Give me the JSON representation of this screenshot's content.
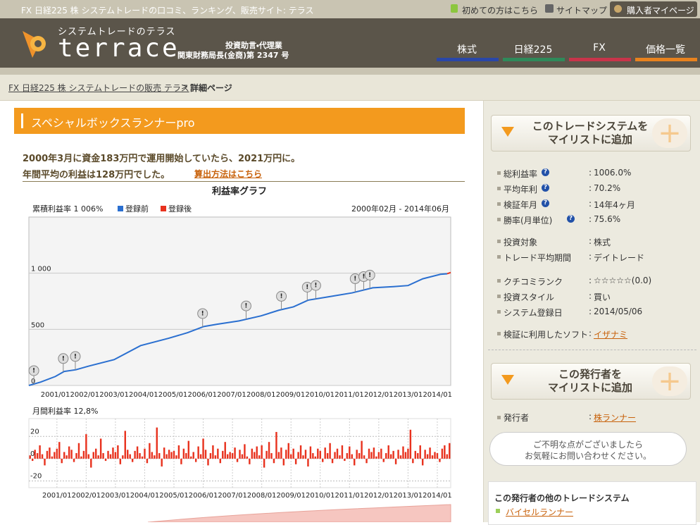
{
  "header": {
    "tagline": "FX 日経225 株 システムトレードの口コミ、ランキング、販売サイト: テラス",
    "links": [
      "初めての方はこちら",
      "サイトマップ"
    ],
    "mypage": "購入者マイページ",
    "logo_sub": "システムトレードのテラス",
    "logo": "terrace",
    "license": [
      "投資助言・代理業",
      "関東財務局長(金商)第 2347 号"
    ]
  },
  "nav": [
    {
      "label": "株式",
      "color": "#2a47a8"
    },
    {
      "label": "日経225",
      "color": "#2f8a5a"
    },
    {
      "label": "FX",
      "color": "#c8344a"
    },
    {
      "label": "価格一覧",
      "color": "#e8821e"
    }
  ],
  "breadcrumb": {
    "link": "FX 日経225 株 システムトレードの販売 テラス",
    "sep": ">",
    "current": "詳細ページ"
  },
  "main": {
    "title": "スペシャルボックスランナーpro",
    "summary": [
      "2000年3月に資金183万円で運用開始していたら、2021万円に。",
      "年間平均の利益は128万円でした。"
    ],
    "summary_link": "算出方法はこちら"
  },
  "chart_data": [
    {
      "type": "line",
      "title": "利益率グラフ",
      "summary": "累積利益率 1 006%",
      "period": "2000年02月 - 2014年06月",
      "series": [
        {
          "name": "登録前",
          "color": "#2a6fd0",
          "x": [
            2000.1,
            2000.5,
            2001.0,
            2001.3,
            2001.7,
            2002.1,
            2003.0,
            2003.9,
            2004.85,
            2005.5,
            2006.05,
            2006.5,
            2007.25,
            2008.0,
            2008.6,
            2009.1,
            2009.6,
            2010.3,
            2011.1,
            2011.8,
            2012.5,
            2013.0,
            2013.5,
            2014.1,
            2014.33
          ],
          "values": [
            0,
            30,
            80,
            125,
            140,
            170,
            230,
            355,
            420,
            470,
            525,
            545,
            575,
            620,
            670,
            700,
            760,
            790,
            825,
            870,
            880,
            890,
            950,
            990,
            995
          ]
        },
        {
          "name": "登録後",
          "color": "#e8321e",
          "x": [
            2014.33,
            2014.45
          ],
          "values": [
            995,
            1006
          ]
        }
      ],
      "flags": {
        "label": "!",
        "x": [
          2000.27,
          2001.27,
          2001.68,
          2006.01,
          2007.49,
          2008.69,
          2009.57,
          2009.86,
          2011.2,
          2011.49,
          2011.7
        ]
      },
      "xlim": [
        2000.1,
        2014.45
      ],
      "xticks": [
        {
          "value": 2001,
          "label": "2001/01"
        },
        {
          "value": 2002,
          "label": "2002/01"
        },
        {
          "value": 2003,
          "label": "2003/01"
        },
        {
          "value": 2004,
          "label": "2004/01"
        },
        {
          "value": 2005,
          "label": "2005/01"
        },
        {
          "value": 2006,
          "label": "2006/01"
        },
        {
          "value": 2007,
          "label": "2007/01"
        },
        {
          "value": 2008,
          "label": "2008/01"
        },
        {
          "value": 2009,
          "label": "2009/01"
        },
        {
          "value": 2010,
          "label": "2010/01"
        },
        {
          "value": 2011,
          "label": "2011/01"
        },
        {
          "value": 2012,
          "label": "2012/01"
        },
        {
          "value": 2013,
          "label": "2013/01"
        },
        {
          "value": 2014,
          "label": "2014/01"
        }
      ],
      "ylim": [
        0,
        1500
      ],
      "yticks": [
        0,
        500,
        {
          "value": 1000,
          "label": "1 000"
        }
      ],
      "grid": true
    },
    {
      "type": "bar",
      "summary": "月間利益率 12,8%",
      "color": "#e8321e",
      "categories": [
        null,
        null,
        null,
        null,
        null,
        null,
        null,
        null,
        null,
        null,
        null,
        "2001/01",
        null,
        null,
        null,
        null,
        null,
        null,
        null,
        null,
        null,
        null,
        null,
        "2002/01",
        null,
        null,
        null,
        null,
        null,
        null,
        null,
        null,
        null,
        null,
        null,
        "2003/01",
        null,
        null,
        null,
        null,
        null,
        null,
        null,
        null,
        null,
        null,
        null,
        "2004/01",
        null,
        null,
        null,
        null,
        null,
        null,
        null,
        null,
        null,
        null,
        null,
        "2005/01",
        null,
        null,
        null,
        null,
        null,
        null,
        null,
        null,
        null,
        null,
        null,
        "2006/01",
        null,
        null,
        null,
        null,
        null,
        null,
        null,
        null,
        null,
        null,
        null,
        "2007/01",
        null,
        null,
        null,
        null,
        null,
        null,
        null,
        null,
        null,
        null,
        null,
        "2008/01",
        null,
        null,
        null,
        null,
        null,
        null,
        null,
        null,
        null,
        null,
        null,
        "2009/01",
        null,
        null,
        null,
        null,
        null,
        null,
        null,
        null,
        null,
        null,
        null,
        "2010/01",
        null,
        null,
        null,
        null,
        null,
        null,
        null,
        null,
        null,
        null,
        null,
        "2011/01",
        null,
        null,
        null,
        null,
        null,
        null,
        null,
        null,
        null,
        null,
        null,
        "2012/01",
        null,
        null,
        null,
        null,
        null,
        null,
        null,
        null,
        null,
        null,
        null,
        "2013/01",
        null,
        null,
        null,
        null,
        null,
        null,
        null,
        null,
        null,
        null,
        null,
        "2014/01",
        null,
        null,
        null,
        null,
        null
      ],
      "values": [
        3,
        -2,
        8,
        5,
        12,
        4,
        -6,
        7,
        10,
        2,
        6,
        9,
        15,
        -4,
        6,
        3,
        11,
        8,
        -3,
        5,
        14,
        2,
        7,
        22,
        4,
        -8,
        6,
        9,
        3,
        18,
        5,
        -2,
        7,
        4,
        10,
        6,
        12,
        -5,
        3,
        25,
        8,
        4,
        -3,
        7,
        11,
        5,
        2,
        9,
        -4,
        14,
        6,
        3,
        28,
        5,
        -7,
        10,
        4,
        8,
        6,
        7,
        3,
        12,
        -5,
        9,
        5,
        16,
        2,
        6,
        -3,
        11,
        4,
        18,
        8,
        -6,
        5,
        12,
        3,
        9,
        -4,
        7,
        15,
        4,
        6,
        5,
        10,
        -3,
        8,
        4,
        13,
        2,
        -5,
        9,
        6,
        11,
        3,
        12,
        -8,
        7,
        15,
        5,
        -4,
        24,
        6,
        10,
        -6,
        8,
        14,
        4,
        9,
        -5,
        6,
        12,
        3,
        8,
        -7,
        11,
        5,
        2,
        9,
        7,
        -3,
        10,
        5,
        14,
        -4,
        6,
        9,
        3,
        12,
        -2,
        5,
        11,
        4,
        -6,
        8,
        5,
        16,
        3,
        -4,
        9,
        6,
        10,
        2,
        6,
        9,
        -3,
        5,
        12,
        4,
        7,
        -5,
        8,
        3,
        11,
        6,
        9,
        26,
        -4,
        7,
        5,
        12,
        -6,
        8,
        4,
        10,
        3,
        6,
        5,
        -3,
        9,
        12,
        4,
        14
      ],
      "ylim": [
        -26,
        36
      ],
      "yticks": [
        -20,
        0,
        20
      ],
      "grid": true
    }
  ],
  "sidebar": {
    "add_system": [
      "このトレードシステムを",
      "マイリストに追加"
    ],
    "separator": ":",
    "stat_groups": [
      [
        {
          "label": "総利益率",
          "value": "1006.0%",
          "help": true
        },
        {
          "label": "平均年利",
          "value": "70.2%",
          "help": true
        },
        {
          "label": "検証年月",
          "value": "14年4ヶ月",
          "help": true
        },
        {
          "label": "勝率(月単位)",
          "value": "75.6%",
          "help": true
        }
      ],
      [
        {
          "label": "投資対象",
          "value": "株式"
        },
        {
          "label": "トレード平均期間",
          "value": "デイトレード"
        }
      ],
      [
        {
          "label": "クチコミランク",
          "value": "☆☆☆☆☆(0.0)"
        },
        {
          "label": "投資スタイル",
          "value": "買い"
        },
        {
          "label": "システム登録日",
          "value": "2014/05/06"
        }
      ],
      [
        {
          "label": "検証に利用したソフト",
          "value": "イザナミ",
          "link": true
        }
      ]
    ],
    "add_publisher": [
      "この発行者を",
      "マイリストに追加"
    ],
    "publisher_label": "発行者",
    "publisher": "株ランナー",
    "help_bubble": [
      "ご不明な点がございましたら",
      "お気軽にお問い合わせください。"
    ],
    "other_title": "この発行者の他のトレードシステム",
    "other_systems": [
      "バイセルランナー"
    ]
  }
}
